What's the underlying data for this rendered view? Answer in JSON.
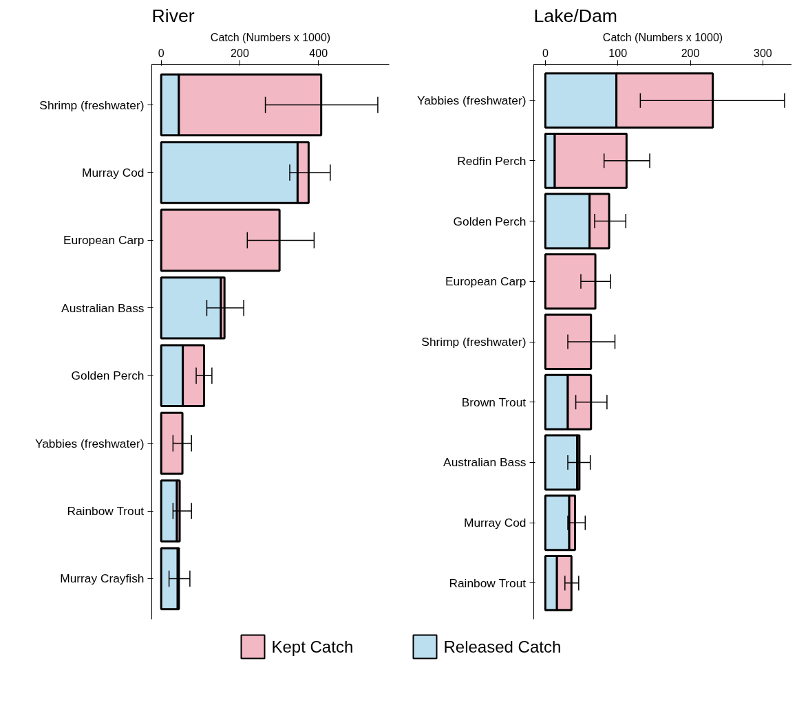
{
  "chart_data": [
    {
      "type": "bar",
      "title": "River",
      "xlabel": "Catch (Numbers x 1000)",
      "orientation": "horizontal",
      "stacked": true,
      "xlim": [
        -24,
        580
      ],
      "xticks": [
        0,
        200,
        400
      ],
      "grid": false,
      "legend": "bottom",
      "categories": [
        "Shrimp (freshwater)",
        "Murray Cod",
        "European Carp",
        "Australian Bass",
        "Golden Perch",
        "Yabbies (freshwater)",
        "Rainbow Trout",
        "Murray Crayfish"
      ],
      "series": [
        {
          "name": "Released Catch",
          "color": "#bcdff0",
          "values": [
            45,
            347,
            0,
            152,
            55,
            0,
            40,
            42
          ]
        },
        {
          "name": "Kept Catch",
          "color": "#f2b8c3",
          "values": [
            362,
            28,
            301,
            9,
            54,
            54,
            7,
            3
          ],
          "errors": [
            [
              265,
              551
            ],
            [
              327,
              430
            ],
            [
              219,
              389
            ],
            [
              116,
              210
            ],
            [
              89,
              129
            ],
            [
              30,
              77
            ],
            [
              30,
              77
            ],
            [
              20,
              73
            ]
          ]
        }
      ]
    },
    {
      "type": "bar",
      "title": "Lake/Dam",
      "xlabel": "Catch (Numbers x 1000)",
      "orientation": "horizontal",
      "stacked": true,
      "xlim": [
        -16,
        340
      ],
      "xticks": [
        0,
        100,
        200,
        300
      ],
      "grid": false,
      "categories": [
        "Yabbies (freshwater)",
        "Redfin Perch",
        "Golden Perch",
        "European Carp",
        "Shrimp (freshwater)",
        "Brown Trout",
        "Australian Bass",
        "Murray Cod",
        "Rainbow Trout"
      ],
      "series": [
        {
          "name": "Released Catch",
          "color": "#bcdff0",
          "values": [
            98,
            13,
            61,
            0,
            0,
            31,
            44,
            33,
            16
          ]
        },
        {
          "name": "Kept Catch",
          "color": "#f2b8c3",
          "values": [
            133,
            99,
            27,
            69,
            63,
            32,
            3,
            8,
            20
          ],
          "errors": [
            [
              131,
              330
            ],
            [
              81,
              144
            ],
            [
              68,
              111
            ],
            [
              49,
              90
            ],
            [
              31,
              96
            ],
            [
              42,
              85
            ],
            [
              31,
              62
            ],
            [
              31,
              55
            ],
            [
              27,
              46
            ]
          ]
        }
      ]
    }
  ]
}
